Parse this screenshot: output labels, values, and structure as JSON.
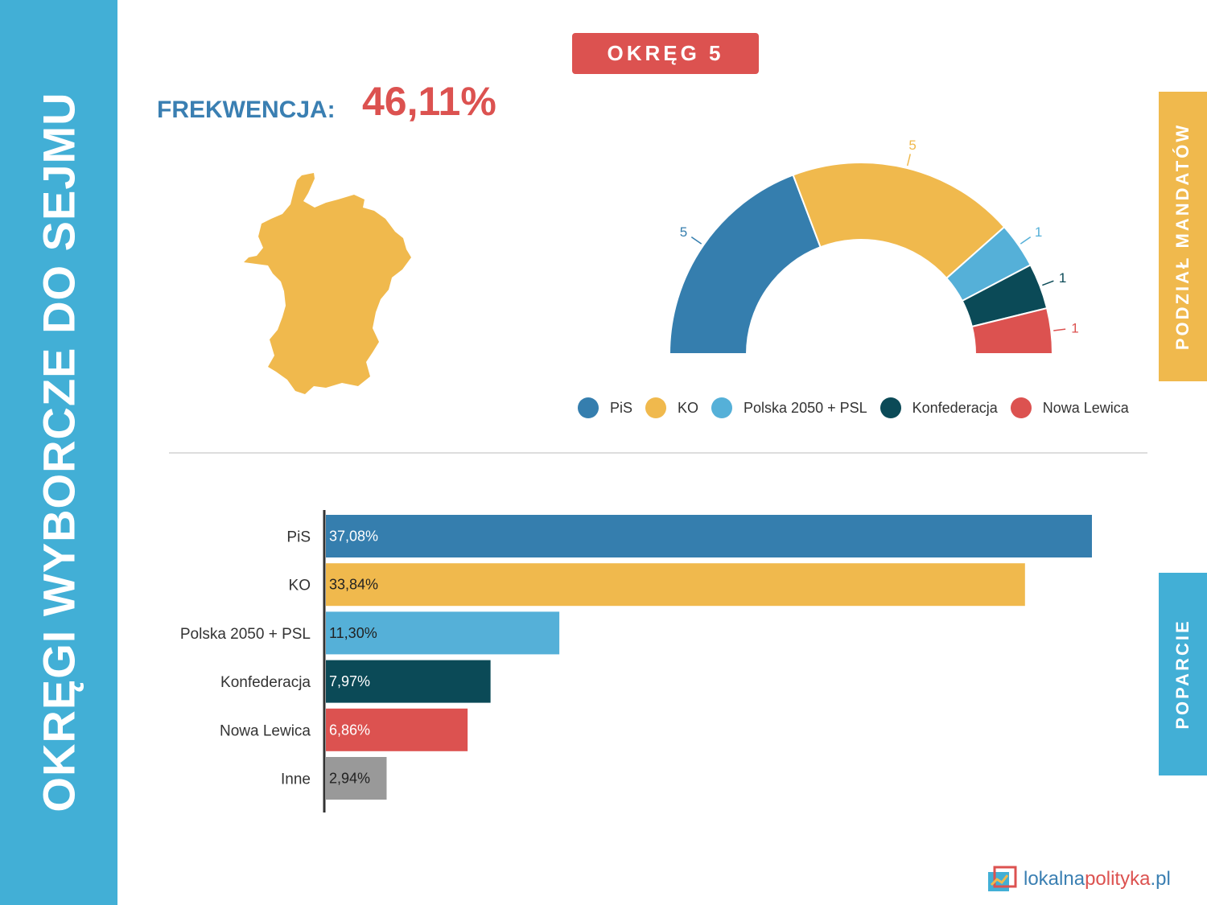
{
  "sidebar": {
    "title": "OKRĘGI WYBORCZE DO SEJMU"
  },
  "district": {
    "label": "OKRĘG 5"
  },
  "turnout": {
    "label": "FREKWENCJA:",
    "value": "46,11%"
  },
  "tabs": {
    "seats": "PODZIAŁ MANDATÓW",
    "support": "POPARCIE"
  },
  "logo": {
    "text_main": "lokalna",
    "text_accent": "polityka",
    "text_tail": ".pl"
  },
  "colors": {
    "sidebar": "#42afd6",
    "accent_red": "#dc5250",
    "tab_seats": "#f0b94d",
    "map": "#f0b94d"
  },
  "chart_data": [
    {
      "type": "pie",
      "variant": "semicircle",
      "categories": [
        "PiS",
        "KO",
        "Polska 2050 + PSL",
        "Konfederacja",
        "Nowa Lewica"
      ],
      "values": [
        5,
        5,
        1,
        1,
        1
      ],
      "labels": [
        "5",
        "5",
        "1",
        "1",
        "1"
      ],
      "colors": [
        "#357eae",
        "#f0b94d",
        "#55b0d8",
        "#0b4a57",
        "#dc5250"
      ],
      "legend": "bottom"
    },
    {
      "type": "bar",
      "orientation": "horizontal",
      "categories": [
        "PiS",
        "KO",
        "Polska 2050 + PSL",
        "Konfederacja",
        "Nowa Lewica",
        "Inne"
      ],
      "values": [
        37.08,
        33.84,
        11.3,
        7.97,
        6.86,
        2.94
      ],
      "value_labels": [
        "37,08%",
        "33,84%",
        "11,30%",
        "7,97%",
        "6,86%",
        "2,94%"
      ],
      "colors": [
        "#357eae",
        "#f0b94d",
        "#55b0d8",
        "#0b4a57",
        "#dc5250",
        "#999999"
      ],
      "label_colors": [
        "#ffffff",
        "#222222",
        "#222222",
        "#ffffff",
        "#ffffff",
        "#222222"
      ],
      "xlim": [
        0,
        37.08
      ]
    }
  ]
}
